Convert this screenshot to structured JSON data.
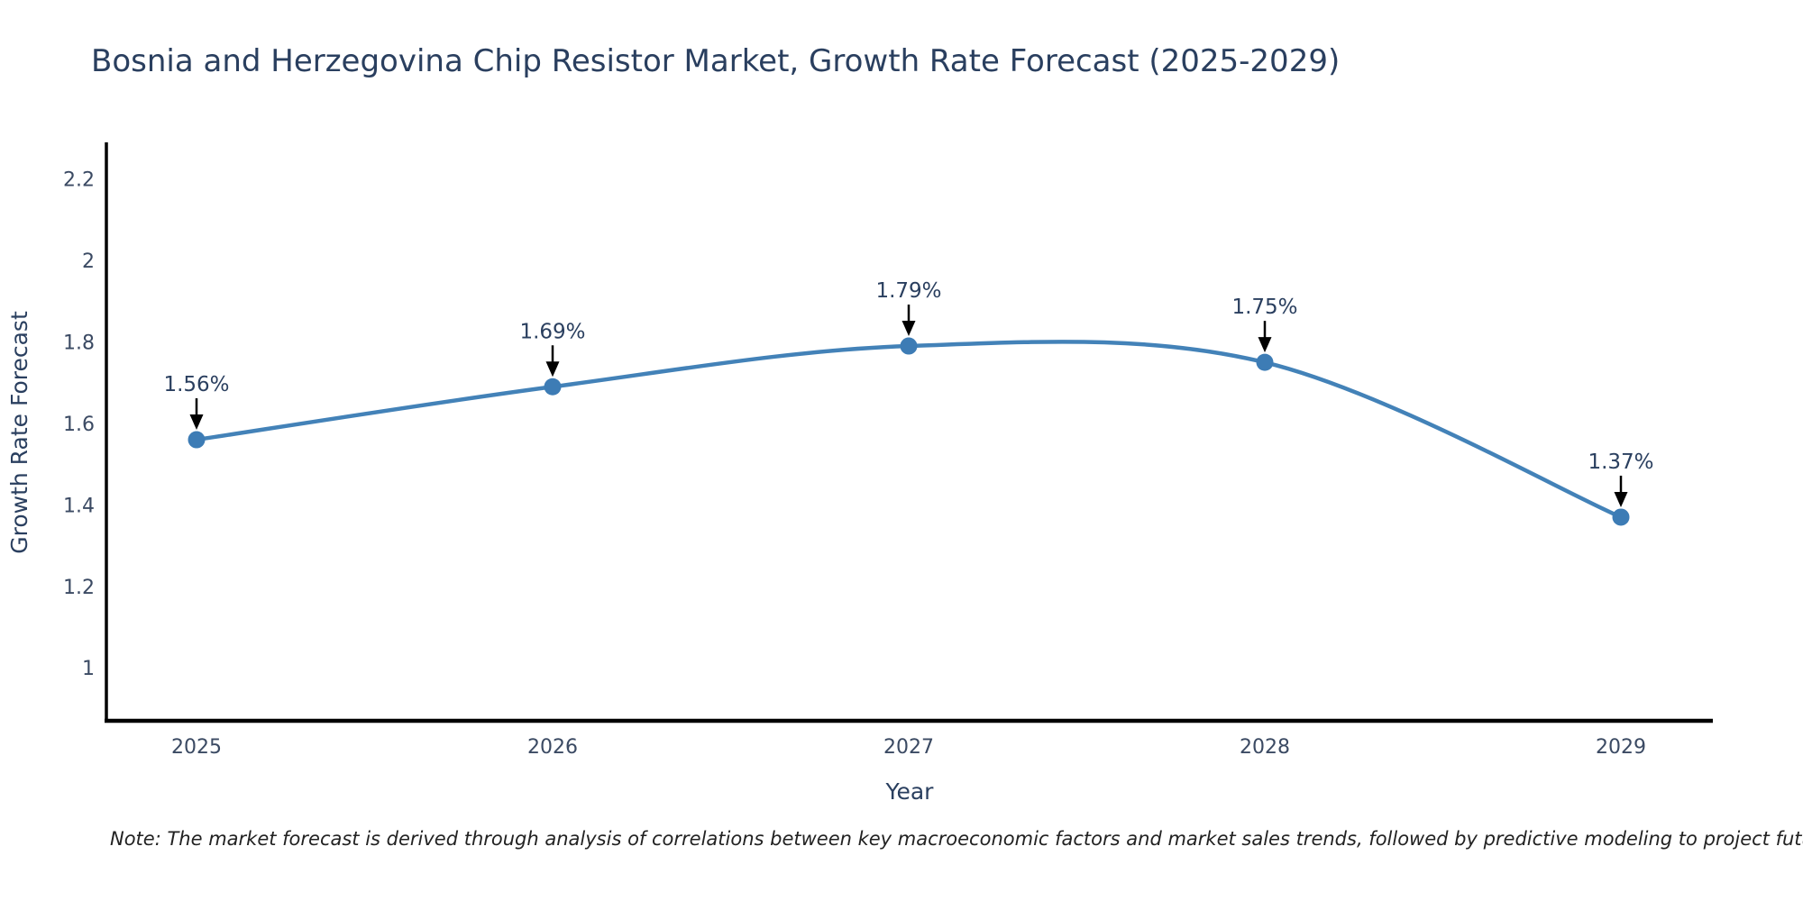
{
  "title": "Bosnia and Herzegovina Chip Resistor Market, Growth Rate Forecast (2025-2029)",
  "note": "Note: The market forecast is derived through analysis of correlations between key macroeconomic factors and market sales trends, followed by predictive modeling to project future sales",
  "chart_data": {
    "type": "line",
    "title": "Bosnia and Herzegovina Chip Resistor Market, Growth Rate Forecast (2025-2029)",
    "xlabel": "Year",
    "ylabel": "Growth Rate Forecast",
    "categories": [
      "2025",
      "2026",
      "2027",
      "2028",
      "2029"
    ],
    "series": [
      {
        "name": "Growth Rate Forecast",
        "values": [
          1.56,
          1.69,
          1.79,
          1.75,
          1.37
        ],
        "point_labels": [
          "1.56%",
          "1.69%",
          "1.79%",
          "1.75%",
          "1.37%"
        ]
      }
    ],
    "yticks": [
      1,
      1.2,
      1.4,
      1.6,
      1.8,
      2,
      2.2
    ],
    "ylim": [
      0.87,
      2.29
    ],
    "grid": false,
    "legend": "none",
    "line_shape": "spline",
    "colors": {
      "line": "#4382b8",
      "marker": "#3d7cb5",
      "axis_line": "#000000",
      "title_text": "#2a3f5f",
      "tick_text": "#3b4a63",
      "annotation_text": "#2a3f5f",
      "annotation_arrow": "#000000",
      "note_text": "#222222"
    }
  }
}
